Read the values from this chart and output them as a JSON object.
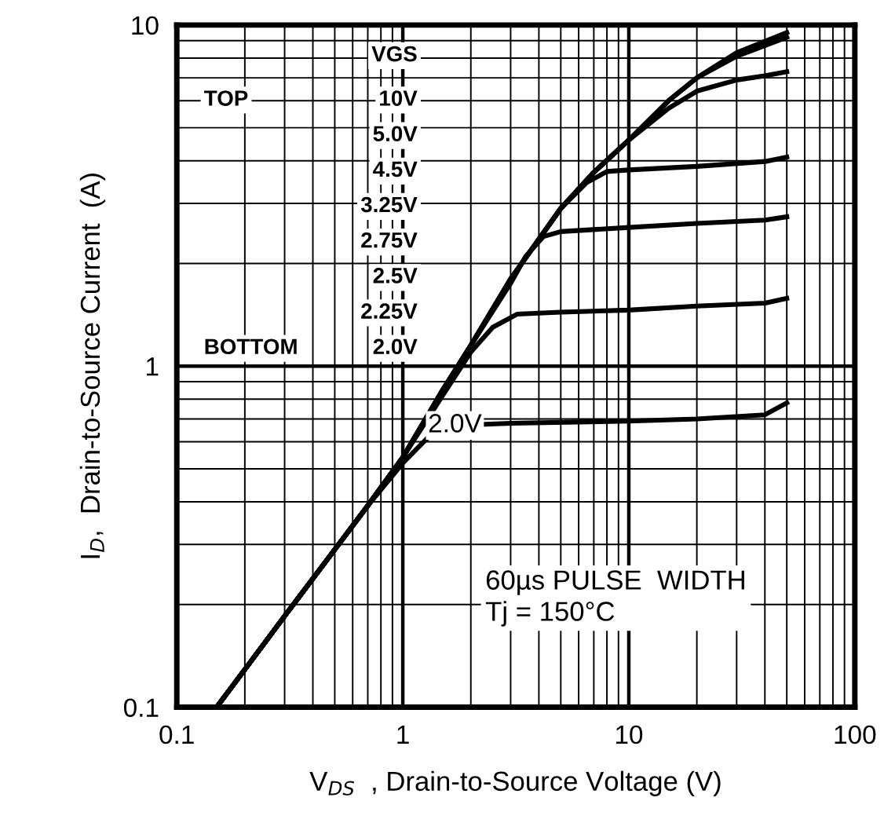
{
  "chart_data": {
    "type": "line",
    "xlabel": "V$_{DS}$  , Drain-to-Source Voltage (V)",
    "ylabel": "I$_{D}$,  Drain-to-Source Current  (A)",
    "log": "xy",
    "xlim": [
      0.1,
      100
    ],
    "ylim": [
      0.1,
      10
    ],
    "xticks": [
      0.1,
      1,
      10,
      100
    ],
    "yticks": [
      0.1,
      1,
      10
    ],
    "grid": true,
    "marker": "none",
    "line_style": "solid",
    "annotations": [
      "VGS",
      "TOP",
      "10V",
      "5.0V",
      "4.5V",
      "3.25V",
      "2.75V",
      "2.5V",
      "2.25V",
      "BOTTOM",
      "2.0V",
      "60µs PULSE  WIDTH\nTj = 150°C"
    ],
    "series": [
      {
        "color": "#000000",
        "x": [
          0.15,
          0.2,
          0.3,
          0.5,
          0.7,
          1,
          1.5,
          2,
          3,
          5,
          7,
          10,
          15,
          20,
          30,
          50
        ],
        "values": [
          0.1,
          0.129,
          0.185,
          0.29,
          0.39,
          0.54,
          0.85,
          1.15,
          1.8,
          2.9,
          3.7,
          4.6,
          6.0,
          7.0,
          8.3,
          9.5
        ]
      },
      {
        "color": "#000000",
        "x": [
          0.15,
          0.2,
          0.3,
          0.5,
          0.7,
          1,
          1.5,
          2,
          3,
          5,
          7,
          10,
          15,
          20,
          30,
          50
        ],
        "values": [
          0.1,
          0.129,
          0.185,
          0.29,
          0.39,
          0.54,
          0.85,
          1.15,
          1.8,
          2.9,
          3.7,
          4.6,
          6.0,
          7.0,
          8.1,
          9.2
        ]
      },
      {
        "color": "#000000",
        "x": [
          0.15,
          0.2,
          0.3,
          0.5,
          0.7,
          1,
          1.5,
          2,
          3,
          5,
          7,
          10,
          15,
          20,
          30,
          40,
          50
        ],
        "values": [
          0.1,
          0.129,
          0.185,
          0.29,
          0.39,
          0.54,
          0.85,
          1.15,
          1.8,
          2.9,
          3.7,
          4.6,
          5.7,
          6.4,
          6.9,
          7.1,
          7.3
        ]
      },
      {
        "color": "#000000",
        "x": [
          0.15,
          0.2,
          0.3,
          0.5,
          0.7,
          1,
          1.5,
          2,
          3,
          5,
          6.5,
          8,
          10,
          20,
          40,
          50
        ],
        "values": [
          0.1,
          0.129,
          0.185,
          0.29,
          0.39,
          0.54,
          0.85,
          1.15,
          1.8,
          2.9,
          3.45,
          3.72,
          3.76,
          3.85,
          3.98,
          4.1
        ]
      },
      {
        "color": "#000000",
        "x": [
          0.15,
          0.2,
          0.3,
          0.5,
          0.7,
          1,
          1.5,
          2,
          3,
          3.5,
          4.2,
          5,
          10,
          20,
          40,
          50
        ],
        "values": [
          0.1,
          0.129,
          0.185,
          0.29,
          0.39,
          0.54,
          0.85,
          1.15,
          1.75,
          2.1,
          2.4,
          2.48,
          2.55,
          2.62,
          2.68,
          2.74
        ]
      },
      {
        "color": "#000000",
        "x": [
          0.15,
          0.2,
          0.3,
          0.5,
          0.7,
          1,
          1.5,
          2,
          2.5,
          3.2,
          5,
          10,
          20,
          40,
          50
        ],
        "values": [
          0.1,
          0.129,
          0.185,
          0.29,
          0.39,
          0.54,
          0.82,
          1.1,
          1.3,
          1.42,
          1.44,
          1.46,
          1.5,
          1.53,
          1.58
        ]
      },
      {
        "name": "2.0V",
        "color": "#000000",
        "x": [
          0.15,
          0.2,
          0.3,
          0.5,
          0.7,
          1,
          1.3,
          1.7,
          3,
          10,
          20,
          40,
          50
        ],
        "values": [
          0.1,
          0.129,
          0.185,
          0.29,
          0.39,
          0.52,
          0.62,
          0.67,
          0.68,
          0.69,
          0.7,
          0.72,
          0.78
        ]
      }
    ]
  }
}
